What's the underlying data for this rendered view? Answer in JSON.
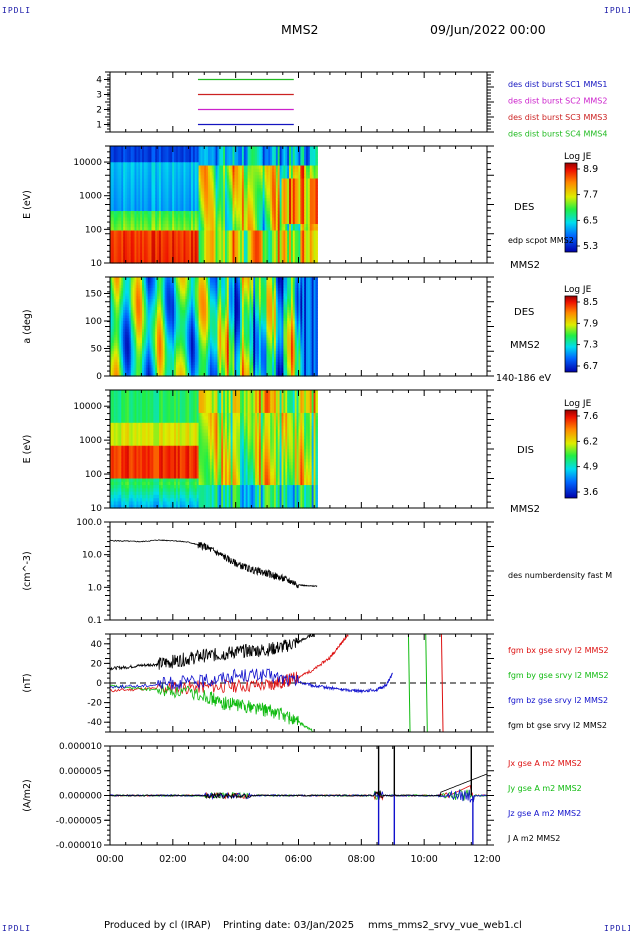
{
  "header": {
    "corner_label": "IPDLI",
    "spacecraft": "MMS2",
    "date_time": "09/Jun/2022 00:00"
  },
  "footer": {
    "produced_by": "Produced by cl (IRAP)",
    "printing_date": "Printing date: 03/Jan/2025",
    "file": "mms_mms2_srvy_vue_web1.cl"
  },
  "chart_data": [
    {
      "type": "line",
      "panel": "availability",
      "yticks": [
        "4",
        "3",
        "2",
        "1"
      ],
      "ylim": [
        0.5,
        4.5
      ],
      "xlabel": "",
      "ylabel": "",
      "series": [
        {
          "name": "des dist burst SC1 MMS1",
          "y": 1,
          "color": "#1515c0",
          "x_start": 2.8,
          "x_end": 5.85
        },
        {
          "name": "des dist burst SC2 MMS2",
          "y": 2,
          "color": "#cc22cc",
          "x_start": 2.8,
          "x_end": 5.85
        },
        {
          "name": "des dist burst SC3 MMS3",
          "y": 3,
          "color": "#cc2222",
          "x_start": 2.8,
          "x_end": 5.85
        },
        {
          "name": "des dist burst SC4 MMS4",
          "y": 4,
          "color": "#22bb22",
          "x_start": 2.8,
          "x_end": 5.85
        }
      ]
    },
    {
      "type": "heatmap",
      "panel": "des-energy",
      "ylabel": "E (eV)",
      "yticks": [
        "10000",
        "1000",
        "100",
        "10"
      ],
      "yscale": "log",
      "ylim": [
        10,
        30000
      ],
      "right_labels": [
        "DES",
        "edp scpot MMS2",
        "MMS2"
      ],
      "colorbar": {
        "title": "Log JE",
        "ticks": [
          "8.9",
          "7.7",
          "6.5",
          "5.3"
        ]
      },
      "x_coverage": [
        0,
        6.6
      ]
    },
    {
      "type": "heatmap",
      "panel": "des-pitch",
      "ylabel": "a (deg)",
      "yticks": [
        "150",
        "100",
        "50",
        "0"
      ],
      "ylim": [
        0,
        180
      ],
      "right_labels": [
        "DES",
        "MMS2",
        "140-186 eV"
      ],
      "colorbar": {
        "title": "Log JE",
        "ticks": [
          "8.5",
          "7.9",
          "7.3",
          "6.7"
        ]
      },
      "x_coverage": [
        0,
        6.6
      ]
    },
    {
      "type": "heatmap",
      "panel": "dis-energy",
      "ylabel": "E (eV)",
      "yticks": [
        "10000",
        "1000",
        "100",
        "10"
      ],
      "yscale": "log",
      "ylim": [
        10,
        30000
      ],
      "right_labels": [
        "DIS",
        "MMS2"
      ],
      "colorbar": {
        "title": "Log JE",
        "ticks": [
          "7.6",
          "6.2",
          "4.9",
          "3.6"
        ]
      },
      "x_coverage": [
        0,
        6.6
      ]
    },
    {
      "type": "line",
      "panel": "density",
      "ylabel": "(cm^-3)",
      "yticks": [
        "100.0",
        "10.0",
        "1.0",
        "0.1"
      ],
      "yscale": "log",
      "ylim": [
        0.1,
        100
      ],
      "series": [
        {
          "name": "des numberdensity fast M",
          "color": "#000000",
          "x": [
            0,
            0.5,
            1,
            1.5,
            2,
            2.5,
            2.8,
            3.0,
            3.3,
            3.6,
            3.9,
            4.2,
            4.5,
            4.8,
            5.1,
            5.4,
            5.7,
            6.0,
            6.3,
            6.6
          ],
          "y": [
            27,
            26,
            25,
            28,
            27,
            24,
            20,
            18,
            13,
            9,
            6,
            4.5,
            3.5,
            3,
            2.5,
            2,
            1.6,
            1.2,
            1.1,
            1.1
          ]
        }
      ]
    },
    {
      "type": "line",
      "panel": "magnetic-field",
      "ylabel": "(nT)",
      "yticks": [
        "40",
        "20",
        "0",
        "-20",
        "-40"
      ],
      "ylim": [
        -50,
        50
      ],
      "series": [
        {
          "name": "fgm bx gse srvy l2 MMS2",
          "color": "#dd1111",
          "x": [
            0,
            1,
            2,
            3,
            4,
            5,
            5.5,
            6,
            6.5,
            7,
            7.3,
            7.6
          ],
          "y": [
            -8,
            -6,
            -5,
            -4,
            -3,
            -2,
            1,
            6,
            14,
            26,
            38,
            50
          ]
        },
        {
          "name": "fgm by gse srvy l2 MMS2",
          "color": "#11bb11",
          "x": [
            0,
            1,
            2,
            3,
            3.5,
            4,
            4.5,
            5,
            5.5,
            6,
            6.5
          ],
          "y": [
            -3,
            -6,
            -8,
            -12,
            -20,
            -22,
            -24,
            -28,
            -32,
            -40,
            -50
          ]
        },
        {
          "name": "fgm bz gse srvy l2 MMS2",
          "color": "#1111cc",
          "x": [
            0,
            1,
            2,
            3,
            4,
            5,
            6,
            6.5,
            7,
            7.5,
            8,
            8.5,
            8.8,
            9.0
          ],
          "y": [
            -4,
            -3,
            0,
            2,
            8,
            8,
            1,
            -3,
            -5,
            -7,
            -8,
            -7,
            -2,
            10
          ]
        },
        {
          "name": "fgm bt gse srvy l2 MMS2",
          "color": "#000000",
          "x": [
            0,
            0.5,
            1,
            1.5,
            2,
            2.5,
            3,
            3.5,
            4,
            4.5,
            5,
            5.5,
            6,
            6.5
          ],
          "y": [
            15,
            16,
            18,
            19,
            22,
            25,
            28,
            29,
            32,
            33,
            34,
            37,
            42,
            50
          ]
        }
      ]
    },
    {
      "type": "line",
      "panel": "current-density",
      "ylabel": "(A/m2)",
      "yticks": [
        "0.000010",
        "0.000005",
        "0.000000",
        "-0.000005",
        "-0.000010"
      ],
      "ylim": [
        -1e-05,
        1e-05
      ],
      "series": [
        {
          "name": "Jx gse A m2 MMS2",
          "color": "#dd1111"
        },
        {
          "name": "Jy gse A m2 MMS2",
          "color": "#11bb11"
        },
        {
          "name": "Jz gse A m2 MMS2",
          "color": "#1111cc"
        },
        {
          "name": "J A m2 MMS2",
          "color": "#000000"
        }
      ]
    }
  ],
  "time_axis": {
    "ticks": [
      "00:00",
      "02:00",
      "04:00",
      "06:00",
      "08:00",
      "10:00",
      "12:00"
    ],
    "xlim": [
      0,
      12
    ]
  }
}
